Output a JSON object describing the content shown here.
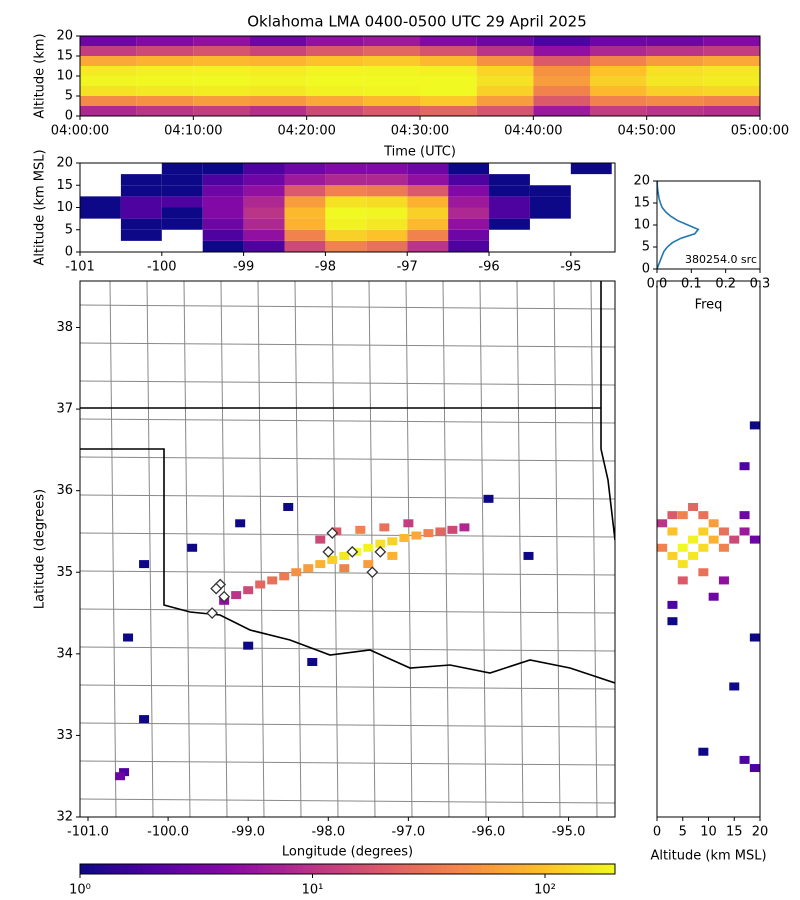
{
  "chart_data": [
    {
      "type": "heatmap",
      "title": "Oklahoma LMA 0400-0500 UTC 29 April 2025",
      "xlabel": "Time (UTC)",
      "ylabel": "Altitude (km)",
      "xbins": [
        "04:00:00",
        "04:05:00",
        "04:10:00",
        "04:15:00",
        "04:20:00",
        "04:25:00",
        "04:30:00",
        "04:35:00",
        "04:40:00",
        "04:45:00",
        "04:50:00",
        "04:55:00",
        "05:00:00"
      ],
      "ybins": [
        0,
        2.5,
        5,
        7.5,
        10,
        12.5,
        15,
        17.5,
        20
      ],
      "z": [
        [
          8,
          10,
          12,
          9,
          15,
          20,
          25,
          18,
          6,
          12,
          10,
          9
        ],
        [
          45,
          50,
          60,
          55,
          70,
          90,
          110,
          60,
          20,
          40,
          45,
          40
        ],
        [
          150,
          160,
          170,
          160,
          180,
          190,
          200,
          120,
          40,
          90,
          120,
          130
        ],
        [
          190,
          195,
          200,
          190,
          200,
          200,
          200,
          150,
          60,
          120,
          160,
          170
        ],
        [
          170,
          180,
          185,
          175,
          190,
          190,
          180,
          130,
          50,
          100,
          150,
          160
        ],
        [
          70,
          80,
          90,
          85,
          100,
          110,
          90,
          50,
          20,
          40,
          60,
          70
        ],
        [
          12,
          15,
          18,
          14,
          20,
          25,
          18,
          10,
          5,
          8,
          10,
          12
        ],
        [
          3,
          4,
          5,
          3,
          5,
          6,
          4,
          3,
          2,
          3,
          3,
          4
        ]
      ],
      "xlim": [
        "04:00:00",
        "05:00:00"
      ],
      "xticks": [
        "04:00:00",
        "04:10:00",
        "04:20:00",
        "04:30:00",
        "04:40:00",
        "04:50:00",
        "05:00:00"
      ],
      "ylim": [
        0,
        20
      ],
      "yticks": [
        0,
        5,
        10,
        15,
        20
      ]
    },
    {
      "type": "heatmap",
      "ylabel": "Altitude (km MSL)",
      "xbins": [
        -101,
        -100.5,
        -100,
        -99.5,
        -99,
        -98.5,
        -98,
        -97.5,
        -97,
        -96.5,
        -96,
        -95.5,
        -95,
        -94.5
      ],
      "ybins": [
        0,
        2.5,
        5,
        7.5,
        10,
        12.5,
        15,
        17.5,
        20
      ],
      "z": [
        [
          null,
          null,
          null,
          1,
          2,
          15,
          40,
          30,
          10,
          2,
          null,
          null,
          null
        ],
        [
          null,
          1,
          null,
          2,
          5,
          40,
          120,
          100,
          40,
          3,
          null,
          null,
          null
        ],
        [
          null,
          1,
          1,
          3,
          8,
          80,
          180,
          160,
          90,
          5,
          1,
          null,
          null
        ],
        [
          1,
          2,
          1,
          4,
          10,
          90,
          200,
          190,
          120,
          8,
          2,
          1,
          null
        ],
        [
          1,
          2,
          2,
          4,
          8,
          60,
          150,
          140,
          80,
          6,
          2,
          1,
          null
        ],
        [
          null,
          1,
          1,
          3,
          5,
          20,
          40,
          35,
          20,
          4,
          1,
          1,
          null
        ],
        [
          null,
          1,
          1,
          2,
          3,
          6,
          8,
          8,
          5,
          2,
          1,
          null,
          null
        ],
        [
          null,
          null,
          1,
          1,
          2,
          3,
          4,
          4,
          3,
          1,
          null,
          null,
          1
        ]
      ],
      "xlim": [
        -101,
        -94.46
      ],
      "xticks": [
        -101,
        -100,
        -99,
        -98,
        -97,
        -96,
        -95
      ],
      "ylim": [
        0,
        20
      ],
      "yticks": [
        0,
        5,
        10,
        15,
        20
      ]
    },
    {
      "type": "line",
      "xlabel": "Freq",
      "annotation": "380254.0 src",
      "color": "#1f77b4",
      "x": [
        0,
        0.005,
        0.01,
        0.015,
        0.02,
        0.03,
        0.045,
        0.07,
        0.11,
        0.12,
        0.09,
        0.06,
        0.04,
        0.025,
        0.015,
        0.01,
        0.006,
        0.004,
        0.002,
        0.001,
        0.0005
      ],
      "y": [
        0,
        1,
        2,
        3,
        4,
        5,
        6,
        7,
        8,
        9,
        10,
        11,
        12,
        13,
        14,
        15,
        16,
        17,
        18,
        19,
        20
      ],
      "xlim": [
        0,
        0.3
      ],
      "xticks": [
        {
          "value": 0,
          "label": "0.0"
        },
        0.1,
        0.2,
        0.3
      ],
      "ylim": [
        0,
        20
      ],
      "yticks": [
        0,
        5,
        10,
        15,
        20
      ]
    },
    {
      "type": "scatter",
      "xlabel": "Longitude (degrees)",
      "ylabel": "Latitude (degrees)",
      "x": [
        -99.3,
        -99.15,
        -99.0,
        -98.85,
        -98.7,
        -98.55,
        -98.4,
        -98.25,
        -98.1,
        -97.95,
        -97.8,
        -97.65,
        -97.5,
        -97.35,
        -97.2,
        -97.05,
        -96.9,
        -96.75,
        -96.6,
        -96.45,
        -96.3,
        -98.1,
        -97.9,
        -97.6,
        -97.3,
        -97.0,
        -97.5,
        -97.2,
        -97.8,
        -100.3,
        -99.7,
        -99.1,
        -98.5,
        -96.0,
        -95.5,
        -100.5,
        -100.3,
        -100.55,
        -100.6,
        -99.0,
        -98.2
      ],
      "y": [
        34.65,
        34.72,
        34.78,
        34.85,
        34.9,
        34.95,
        35.0,
        35.05,
        35.1,
        35.15,
        35.2,
        35.25,
        35.3,
        35.35,
        35.38,
        35.42,
        35.45,
        35.48,
        35.5,
        35.52,
        35.55,
        35.4,
        35.5,
        35.52,
        35.55,
        35.6,
        35.1,
        35.2,
        35.05,
        35.1,
        35.3,
        35.6,
        35.8,
        35.9,
        35.2,
        34.2,
        33.2,
        32.55,
        32.5,
        34.1,
        33.9
      ],
      "values": [
        5,
        10,
        15,
        25,
        30,
        35,
        50,
        60,
        80,
        120,
        160,
        200,
        180,
        150,
        120,
        90,
        70,
        40,
        25,
        15,
        8,
        15,
        20,
        40,
        30,
        12,
        60,
        80,
        40,
        1,
        1,
        1,
        1,
        1,
        1,
        1,
        1,
        2,
        3,
        1,
        1
      ],
      "stations": {
        "x": [
          -98.0,
          -97.95,
          -97.7,
          -97.45,
          -97.35,
          -99.35,
          -99.3,
          -99.45,
          -99.4
        ],
        "y": [
          35.25,
          35.48,
          35.25,
          35.0,
          35.25,
          34.85,
          34.7,
          34.5,
          34.8
        ]
      },
      "xlim": [
        -101.1,
        -94.42
      ],
      "xticks": [
        {
          "value": -101,
          "label": "-101.0"
        },
        {
          "value": -100,
          "label": "-100.0"
        },
        {
          "value": -99,
          "label": "-99.0"
        },
        {
          "value": -98,
          "label": "-98.0"
        },
        {
          "value": -97,
          "label": "-97.0"
        },
        {
          "value": -96,
          "label": "-96.0"
        },
        {
          "value": -95,
          "label": "-95.0"
        }
      ],
      "ylim": [
        32,
        38.57
      ],
      "yticks": [
        32,
        33,
        34,
        35,
        36,
        37,
        38
      ]
    },
    {
      "type": "scatter",
      "xlabel": "Altitude (km MSL)",
      "x": [
        1,
        3,
        3,
        5,
        5,
        7,
        7,
        9,
        9,
        11,
        11,
        13,
        13,
        15,
        17,
        19,
        1,
        3,
        5,
        7,
        9,
        5,
        9,
        13,
        17,
        19,
        17,
        11,
        3,
        15,
        17,
        19,
        9,
        3,
        19
      ],
      "y": [
        35.3,
        35.2,
        35.5,
        35.3,
        35.1,
        35.4,
        35.2,
        35.5,
        35.3,
        35.4,
        35.6,
        35.3,
        35.5,
        35.4,
        35.5,
        35.4,
        35.6,
        35.7,
        35.7,
        35.8,
        35.7,
        34.9,
        35.0,
        34.9,
        35.7,
        36.8,
        36.3,
        34.7,
        34.6,
        33.6,
        32.7,
        32.6,
        32.8,
        34.4,
        34.2
      ],
      "values": [
        40,
        120,
        100,
        200,
        150,
        180,
        160,
        120,
        140,
        80,
        60,
        40,
        30,
        15,
        6,
        3,
        10,
        20,
        40,
        25,
        30,
        20,
        30,
        5,
        3,
        1,
        2,
        3,
        2,
        1,
        2,
        2,
        1,
        1,
        1
      ],
      "xlim": [
        0,
        20
      ],
      "xticks": [
        0,
        5,
        10,
        15,
        20
      ],
      "ylim": [
        32,
        38.57
      ]
    },
    {
      "type": "colorbar",
      "colormap": "plasma",
      "scale": "log",
      "clim": [
        1,
        200
      ],
      "ticks": [
        {
          "value": 1,
          "label": "10⁰"
        },
        {
          "value": 10,
          "label": "10¹"
        },
        {
          "value": 100,
          "label": "10²"
        }
      ]
    }
  ]
}
